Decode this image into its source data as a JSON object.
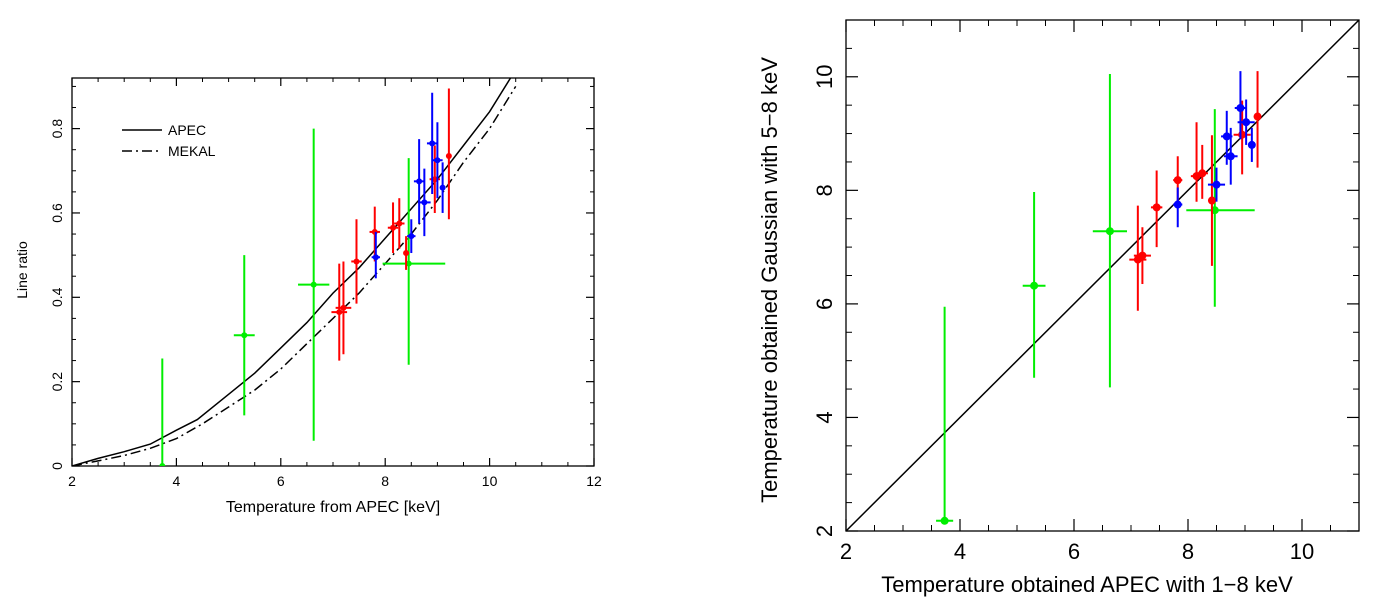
{
  "chart_data": [
    {
      "type": "scatter",
      "xlabel": "Temperature from APEC [keV]",
      "ylabel": "Line ratio",
      "xlim": [
        2,
        12
      ],
      "ylim": [
        0,
        0.92
      ],
      "xticks": [
        2,
        4,
        6,
        8,
        10,
        12
      ],
      "yticks": [
        0,
        0.2,
        0.4,
        0.6,
        0.8
      ],
      "xtick_labels": [
        "2",
        "4",
        "6",
        "8",
        "10",
        "12"
      ],
      "ytick_labels": [
        "0",
        "0.2",
        "0.4",
        "0.6",
        "0.8"
      ],
      "grid": false,
      "legend_position": "top-left",
      "lines": [
        {
          "name": "APEC",
          "style": "solid",
          "x": [
            2.0,
            2.5,
            3.0,
            3.5,
            4.0,
            4.4,
            5.0,
            5.5,
            6.0,
            6.5,
            7.0,
            7.5,
            8.0,
            8.5,
            9.0,
            9.5,
            10.0,
            10.4
          ],
          "y": [
            0.0,
            0.018,
            0.034,
            0.052,
            0.085,
            0.11,
            0.17,
            0.22,
            0.28,
            0.34,
            0.41,
            0.47,
            0.54,
            0.61,
            0.68,
            0.76,
            0.84,
            0.92
          ]
        },
        {
          "name": "MEKAL",
          "style": "dashdot",
          "x": [
            2.0,
            2.5,
            3.0,
            3.5,
            4.0,
            4.5,
            5.0,
            5.5,
            6.0,
            6.5,
            7.0,
            7.5,
            8.0,
            8.5,
            9.0,
            9.5,
            10.0,
            10.5
          ],
          "y": [
            0.0,
            0.012,
            0.025,
            0.042,
            0.065,
            0.1,
            0.14,
            0.18,
            0.23,
            0.29,
            0.35,
            0.41,
            0.48,
            0.55,
            0.63,
            0.72,
            0.8,
            0.9
          ]
        }
      ],
      "series": [
        {
          "color": "#00ee00",
          "points": [
            {
              "x": 3.73,
              "y": 0.0,
              "yerr": [
                0.0,
                0.255
              ],
              "xerr": [
                0.05,
                0.05
              ]
            },
            {
              "x": 5.3,
              "y": 0.31,
              "yerr": [
                0.19,
                0.19
              ],
              "xerr": [
                0.2,
                0.2
              ]
            },
            {
              "x": 6.63,
              "y": 0.43,
              "yerr": [
                0.37,
                0.37
              ],
              "xerr": [
                0.3,
                0.3
              ]
            },
            {
              "x": 8.45,
              "y": 0.48,
              "yerr": [
                0.24,
                0.25
              ],
              "xerr": [
                0.5,
                0.7
              ]
            }
          ]
        },
        {
          "color": "#ff0000",
          "points": [
            {
              "x": 7.12,
              "y": 0.365,
              "yerr": [
                0.115,
                0.115
              ],
              "xerr": [
                0.15,
                0.15
              ]
            },
            {
              "x": 7.2,
              "y": 0.375,
              "yerr": [
                0.11,
                0.11
              ],
              "xerr": [
                0.15,
                0.15
              ]
            },
            {
              "x": 7.45,
              "y": 0.485,
              "yerr": [
                0.1,
                0.1
              ],
              "xerr": [
                0.1,
                0.1
              ]
            },
            {
              "x": 7.8,
              "y": 0.555,
              "yerr": [
                0.07,
                0.06
              ],
              "xerr": [
                0.1,
                0.1
              ]
            },
            {
              "x": 8.15,
              "y": 0.565,
              "yerr": [
                0.06,
                0.06
              ],
              "xerr": [
                0.1,
                0.1
              ]
            },
            {
              "x": 8.27,
              "y": 0.575,
              "yerr": [
                0.06,
                0.06
              ],
              "xerr": [
                0.1,
                0.1
              ]
            },
            {
              "x": 8.4,
              "y": 0.505,
              "yerr": [
                0.04,
                0.04
              ],
              "xerr": [
                0.05,
                0.05
              ]
            },
            {
              "x": 8.95,
              "y": 0.68,
              "yerr": [
                0.08,
                0.08
              ],
              "xerr": [
                0.1,
                0.1
              ]
            },
            {
              "x": 9.22,
              "y": 0.735,
              "yerr": [
                0.15,
                0.16
              ],
              "xerr": [
                0.05,
                0.05
              ]
            }
          ]
        },
        {
          "color": "#0000ff",
          "points": [
            {
              "x": 7.82,
              "y": 0.495,
              "yerr": [
                0.05,
                0.06
              ],
              "xerr": [
                0.08,
                0.08
              ]
            },
            {
              "x": 8.5,
              "y": 0.545,
              "yerr": [
                0.04,
                0.04
              ],
              "xerr": [
                0.08,
                0.08
              ]
            },
            {
              "x": 8.65,
              "y": 0.675,
              "yerr": [
                0.1,
                0.1
              ],
              "xerr": [
                0.1,
                0.1
              ]
            },
            {
              "x": 8.75,
              "y": 0.625,
              "yerr": [
                0.08,
                0.08
              ],
              "xerr": [
                0.12,
                0.12
              ]
            },
            {
              "x": 8.9,
              "y": 0.765,
              "yerr": [
                0.12,
                0.12
              ],
              "xerr": [
                0.1,
                0.1
              ]
            },
            {
              "x": 9.0,
              "y": 0.725,
              "yerr": [
                0.09,
                0.09
              ],
              "xerr": [
                0.1,
                0.1
              ]
            },
            {
              "x": 9.1,
              "y": 0.66,
              "yerr": [
                0.06,
                0.06
              ],
              "xerr": [
                0.05,
                0.05
              ]
            }
          ]
        }
      ],
      "legend": [
        "APEC",
        "MEKAL"
      ]
    },
    {
      "type": "scatter",
      "xlabel": "Temperature obtained APEC with 1−8 keV",
      "ylabel": "Temperature obtained Gaussian with 5−8 keV",
      "xlim": [
        2,
        11
      ],
      "ylim": [
        2,
        11
      ],
      "xticks": [
        2,
        4,
        6,
        8,
        10
      ],
      "yticks": [
        2,
        4,
        6,
        8,
        10
      ],
      "xtick_labels": [
        "2",
        "4",
        "6",
        "8",
        "10"
      ],
      "ytick_labels": [
        "2",
        "4",
        "6",
        "8",
        "10"
      ],
      "grid": false,
      "lines": [
        {
          "name": "",
          "style": "solid",
          "x": [
            2,
            11
          ],
          "y": [
            2,
            11
          ]
        }
      ],
      "series": [
        {
          "color": "#00ee00",
          "points": [
            {
              "x": 3.73,
              "y": 2.18,
              "yerr": [
                0.0,
                3.77
              ],
              "xerr": [
                0.15,
                0.15
              ]
            },
            {
              "x": 5.3,
              "y": 6.32,
              "yerr": [
                1.62,
                1.65
              ],
              "xerr": [
                0.2,
                0.2
              ]
            },
            {
              "x": 6.63,
              "y": 7.28,
              "yerr": [
                2.75,
                2.77
              ],
              "xerr": [
                0.3,
                0.3
              ]
            },
            {
              "x": 8.47,
              "y": 7.65,
              "yerr": [
                1.7,
                1.78
              ],
              "xerr": [
                0.5,
                0.7
              ]
            }
          ]
        },
        {
          "color": "#ff0000",
          "points": [
            {
              "x": 7.12,
              "y": 6.78,
              "yerr": [
                0.9,
                0.95
              ],
              "xerr": [
                0.15,
                0.15
              ]
            },
            {
              "x": 7.2,
              "y": 6.85,
              "yerr": [
                0.5,
                0.5
              ],
              "xerr": [
                0.15,
                0.15
              ]
            },
            {
              "x": 7.45,
              "y": 7.7,
              "yerr": [
                0.7,
                0.65
              ],
              "xerr": [
                0.1,
                0.1
              ]
            },
            {
              "x": 7.82,
              "y": 8.18,
              "yerr": [
                0.45,
                0.42
              ],
              "xerr": [
                0.08,
                0.08
              ]
            },
            {
              "x": 8.15,
              "y": 8.25,
              "yerr": [
                0.45,
                0.95
              ],
              "xerr": [
                0.1,
                0.1
              ]
            },
            {
              "x": 8.25,
              "y": 8.3,
              "yerr": [
                0.45,
                0.5
              ],
              "xerr": [
                0.1,
                0.1
              ]
            },
            {
              "x": 8.42,
              "y": 7.82,
              "yerr": [
                1.15,
                1.15
              ],
              "xerr": [
                0.05,
                0.05
              ]
            },
            {
              "x": 8.95,
              "y": 8.98,
              "yerr": [
                0.7,
                0.6
              ],
              "xerr": [
                0.15,
                0.15
              ]
            },
            {
              "x": 9.22,
              "y": 9.3,
              "yerr": [
                0.9,
                0.8
              ],
              "xerr": [
                0.05,
                0.05
              ]
            }
          ]
        },
        {
          "color": "#0000ff",
          "points": [
            {
              "x": 7.82,
              "y": 7.75,
              "yerr": [
                0.4,
                0.3
              ],
              "xerr": [
                0.08,
                0.08
              ]
            },
            {
              "x": 8.5,
              "y": 8.1,
              "yerr": [
                0.3,
                0.3
              ],
              "xerr": [
                0.15,
                0.15
              ]
            },
            {
              "x": 8.68,
              "y": 8.95,
              "yerr": [
                0.5,
                0.45
              ],
              "xerr": [
                0.1,
                0.1
              ]
            },
            {
              "x": 8.75,
              "y": 8.6,
              "yerr": [
                0.5,
                0.5
              ],
              "xerr": [
                0.12,
                0.12
              ]
            },
            {
              "x": 8.92,
              "y": 9.45,
              "yerr": [
                0.55,
                0.65
              ],
              "xerr": [
                0.1,
                0.1
              ]
            },
            {
              "x": 9.02,
              "y": 9.2,
              "yerr": [
                0.4,
                0.4
              ],
              "xerr": [
                0.15,
                0.15
              ]
            },
            {
              "x": 9.12,
              "y": 8.8,
              "yerr": [
                0.3,
                0.3
              ],
              "xerr": [
                0.05,
                0.05
              ]
            }
          ]
        }
      ],
      "legend": []
    }
  ]
}
